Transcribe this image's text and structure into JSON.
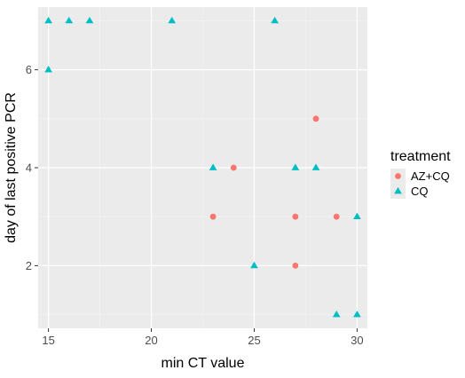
{
  "chart_data": {
    "type": "scatter",
    "xlabel": "min CT value",
    "ylabel": "day of last positive PCR",
    "xlim": [
      14.5,
      30.5
    ],
    "ylim": [
      0.72,
      7.28
    ],
    "x_ticks": [
      15,
      20,
      25,
      30
    ],
    "y_ticks": [
      2,
      4,
      6
    ],
    "grid": true,
    "background": "#ebebeb",
    "legend": {
      "title": "treatment",
      "position": "right"
    },
    "series": [
      {
        "name": "AZ+CQ",
        "marker": "circle",
        "color": "#f8766d",
        "points": [
          {
            "x": 23,
            "y": 3
          },
          {
            "x": 24,
            "y": 4
          },
          {
            "x": 27,
            "y": 3
          },
          {
            "x": 27,
            "y": 2
          },
          {
            "x": 28,
            "y": 5
          },
          {
            "x": 29,
            "y": 3
          }
        ]
      },
      {
        "name": "CQ",
        "marker": "triangle",
        "color": "#00bfc4",
        "points": [
          {
            "x": 15,
            "y": 7
          },
          {
            "x": 16,
            "y": 7
          },
          {
            "x": 17,
            "y": 7
          },
          {
            "x": 21,
            "y": 7
          },
          {
            "x": 26,
            "y": 7
          },
          {
            "x": 15,
            "y": 6
          },
          {
            "x": 23,
            "y": 4
          },
          {
            "x": 27,
            "y": 4
          },
          {
            "x": 28,
            "y": 4
          },
          {
            "x": 30,
            "y": 3
          },
          {
            "x": 25,
            "y": 2
          },
          {
            "x": 29,
            "y": 1
          },
          {
            "x": 30,
            "y": 1
          }
        ]
      }
    ]
  }
}
